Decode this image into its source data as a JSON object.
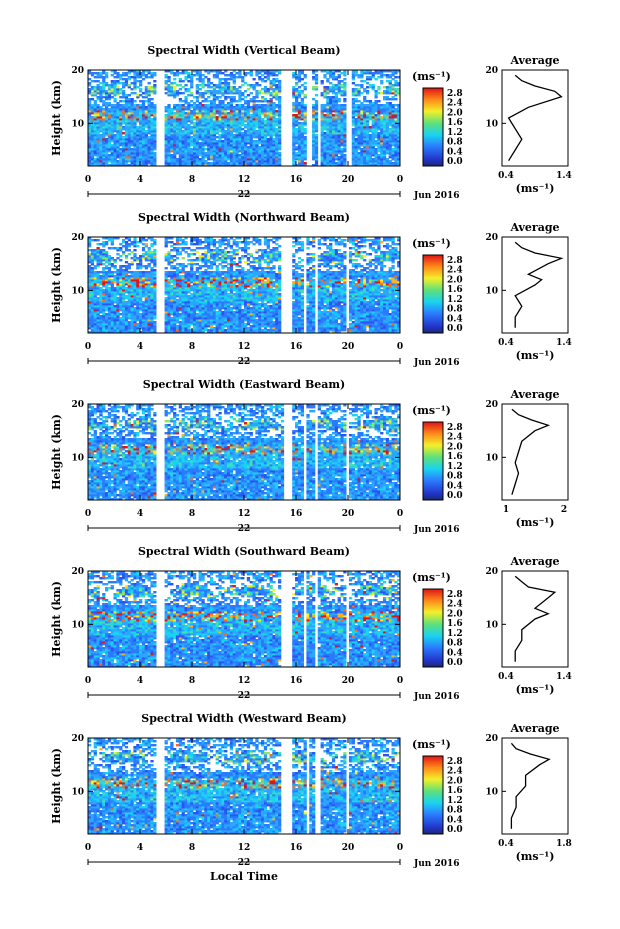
{
  "shared": {
    "ylabel": "Height (km)",
    "y_ticks": [
      "20",
      "10"
    ],
    "x_ticks": [
      "0",
      "4",
      "8",
      "12",
      "16",
      "20",
      "0"
    ],
    "date_label": "22",
    "month_label": "Jun 2016",
    "xlabel": "Local Time",
    "colorbar_unit": "(ms⁻¹)",
    "colorbar_ticks": [
      "2.8",
      "2.4",
      "2.0",
      "1.6",
      "1.2",
      "0.8",
      "0.4",
      "0.0"
    ],
    "avg_title": "Average",
    "avg_unit": "(ms⁻¹)"
  },
  "panels": [
    {
      "title": "Spectral Width (Vertical Beam)",
      "avg_ticks": [
        "0.4",
        "1.4"
      ]
    },
    {
      "title": "Spectral Width (Northward Beam)",
      "avg_ticks": [
        "0.4",
        "1.4"
      ]
    },
    {
      "title": "Spectral Width (Eastward Beam)",
      "avg_ticks": [
        "1",
        "2"
      ]
    },
    {
      "title": "Spectral Width (Southward Beam)",
      "avg_ticks": [
        "0.4",
        "1.4"
      ]
    },
    {
      "title": "Spectral Width (Westward Beam)",
      "avg_ticks": [
        "0.4",
        "1.8"
      ]
    }
  ],
  "chart_data": [
    {
      "type": "heatmap",
      "title": "Spectral Width (Vertical Beam)",
      "xlabel": "",
      "ylabel": "Height (km)",
      "x_range_hours": [
        0,
        24
      ],
      "y_range_km": [
        2,
        20
      ],
      "colorbar_range": [
        0.0,
        3.0
      ],
      "data_gaps_hours": [
        [
          5.3,
          5.9
        ],
        [
          14.8,
          15.8
        ],
        [
          16.9,
          17.2
        ],
        [
          17.6,
          17.9
        ],
        [
          19.8,
          20.2
        ]
      ],
      "average_profile": {
        "height_km": [
          3,
          5,
          7,
          9,
          11,
          13,
          15,
          16,
          17,
          18,
          19
        ],
        "width_ms": [
          0.5,
          0.6,
          0.7,
          0.6,
          0.5,
          0.8,
          1.3,
          1.2,
          0.9,
          0.7,
          0.6
        ],
        "xlim": [
          0.4,
          1.4
        ]
      }
    },
    {
      "type": "heatmap",
      "title": "Spectral Width (Northward Beam)",
      "xlabel": "",
      "ylabel": "Height (km)",
      "x_range_hours": [
        0,
        24
      ],
      "y_range_km": [
        2,
        20
      ],
      "colorbar_range": [
        0.0,
        3.0
      ],
      "data_gaps_hours": [
        [
          5.3,
          5.9
        ],
        [
          14.8,
          15.6
        ],
        [
          16.6,
          16.9
        ],
        [
          17.4,
          17.7
        ],
        [
          19.8,
          20.1
        ]
      ],
      "average_profile": {
        "height_km": [
          3,
          5,
          7,
          9,
          11,
          12,
          13,
          15,
          16,
          17,
          18,
          19
        ],
        "width_ms": [
          0.6,
          0.6,
          0.7,
          0.6,
          0.9,
          1.0,
          0.8,
          1.1,
          1.3,
          0.9,
          0.7,
          0.6
        ],
        "xlim": [
          0.4,
          1.4
        ]
      }
    },
    {
      "type": "heatmap",
      "title": "Spectral Width (Eastward Beam)",
      "xlabel": "",
      "ylabel": "Height (km)",
      "x_range_hours": [
        0,
        24
      ],
      "y_range_km": [
        2,
        20
      ],
      "colorbar_range": [
        0.0,
        3.0
      ],
      "data_gaps_hours": [
        [
          5.3,
          5.9
        ],
        [
          15.0,
          15.6
        ],
        [
          16.6,
          16.9
        ],
        [
          17.4,
          17.7
        ],
        [
          19.8,
          20.1
        ]
      ],
      "average_profile": {
        "height_km": [
          3,
          5,
          7,
          9,
          11,
          13,
          15,
          16,
          17,
          18,
          19
        ],
        "width_ms": [
          0.7,
          0.8,
          0.9,
          0.8,
          0.9,
          1.0,
          1.4,
          1.8,
          1.3,
          0.9,
          0.7
        ],
        "xlim": [
          0.4,
          2.4
        ]
      }
    },
    {
      "type": "heatmap",
      "title": "Spectral Width (Southward Beam)",
      "xlabel": "",
      "ylabel": "Height (km)",
      "x_range_hours": [
        0,
        24
      ],
      "y_range_km": [
        2,
        20
      ],
      "colorbar_range": [
        0.0,
        3.0
      ],
      "data_gaps_hours": [
        [
          5.3,
          5.9
        ],
        [
          14.8,
          15.6
        ],
        [
          16.6,
          16.9
        ],
        [
          17.4,
          17.7
        ],
        [
          19.8,
          20.1
        ]
      ],
      "average_profile": {
        "height_km": [
          3,
          5,
          7,
          9,
          11,
          12,
          13,
          15,
          16,
          17,
          18,
          19
        ],
        "width_ms": [
          0.6,
          0.6,
          0.7,
          0.7,
          0.9,
          1.1,
          0.9,
          1.1,
          1.2,
          0.8,
          0.7,
          0.6
        ],
        "xlim": [
          0.4,
          1.4
        ]
      }
    },
    {
      "type": "heatmap",
      "title": "Spectral Width (Westward Beam)",
      "xlabel": "Local Time",
      "ylabel": "Height (km)",
      "x_range_hours": [
        0,
        24
      ],
      "y_range_km": [
        2,
        20
      ],
      "colorbar_range": [
        0.0,
        3.0
      ],
      "data_gaps_hours": [
        [
          5.3,
          5.9
        ],
        [
          14.8,
          15.6
        ],
        [
          16.7,
          17.0
        ],
        [
          17.5,
          17.8
        ],
        [
          19.8,
          20.1
        ]
      ],
      "average_profile": {
        "height_km": [
          3,
          5,
          7,
          9,
          11,
          13,
          15,
          16,
          17,
          18,
          19
        ],
        "width_ms": [
          0.6,
          0.6,
          0.7,
          0.7,
          0.9,
          0.9,
          1.2,
          1.4,
          1.0,
          0.7,
          0.6
        ],
        "xlim": [
          0.4,
          1.8
        ]
      }
    }
  ]
}
